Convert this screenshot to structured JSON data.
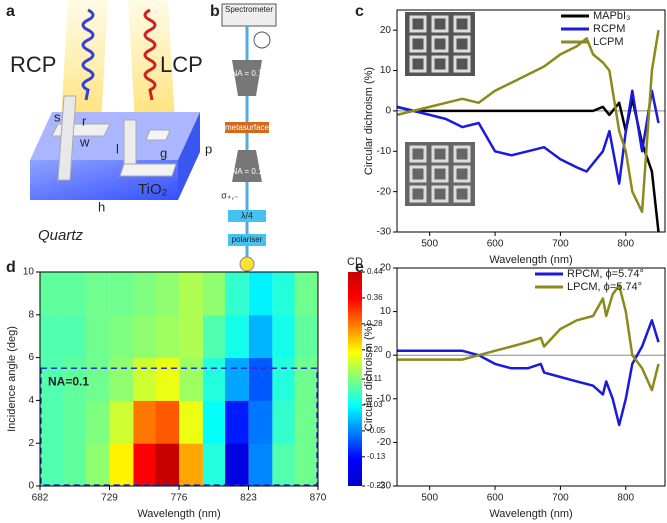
{
  "figure": {
    "panel_labels": [
      "a",
      "b",
      "c",
      "d",
      "e"
    ],
    "panel_a": {
      "beam_left": "RCP",
      "beam_right": "LCP",
      "dims": [
        "s",
        "r",
        "w",
        "l",
        "g",
        "p",
        "h"
      ],
      "material": "TiO₂",
      "substrate": "Quartz"
    },
    "panel_b": {
      "detector": "Spectrometer",
      "objective_top": "NA = 0.7",
      "sample": "metasurface",
      "objective_bottom": "NA = 0.1",
      "polarization": "σ₊,₋",
      "waveplate": "λ/4",
      "polarizer": "polariser"
    }
  },
  "chart_data": [
    {
      "type": "line",
      "xlabel": "Wavelength (nm)",
      "ylabel": "Circular dichroism (%)",
      "legend": "upper right",
      "xlim": [
        450,
        860
      ],
      "ylim": [
        -30,
        25
      ],
      "xticks": [
        500,
        600,
        700,
        800
      ],
      "yticks": [
        -30,
        -20,
        -10,
        0,
        10,
        20
      ],
      "x": [
        450,
        475,
        500,
        525,
        550,
        575,
        600,
        625,
        650,
        675,
        700,
        725,
        740,
        750,
        765,
        775,
        790,
        800,
        810,
        825,
        840,
        850
      ],
      "series": [
        {
          "name": "MAPbI₃",
          "color": "#000000",
          "values": [
            1,
            0,
            0,
            0,
            0,
            0,
            0,
            0,
            0,
            0,
            0,
            0,
            0,
            0,
            1,
            -1,
            2,
            -5,
            3,
            -8,
            -15,
            -30
          ]
        },
        {
          "name": "RCPM",
          "color": "#1a1adc",
          "values": [
            1,
            0,
            -1,
            -2,
            -4,
            -3,
            -10,
            -11,
            -10,
            -9,
            -12,
            -14,
            -15,
            -13,
            -10,
            -5,
            -18,
            -5,
            5,
            -10,
            5,
            -3
          ]
        },
        {
          "name": "LCPM",
          "color": "#8c8a1a",
          "values": [
            -1,
            0,
            1,
            2,
            3,
            2,
            5,
            7,
            9,
            11,
            14,
            16,
            18,
            14,
            12,
            10,
            -5,
            -10,
            -20,
            -25,
            10,
            20
          ]
        }
      ]
    },
    {
      "type": "heatmap",
      "xlabel": "Wavelength (nm)",
      "ylabel": "Incidence angle (deg)",
      "xlim": [
        682,
        870
      ],
      "ylim": [
        0,
        10
      ],
      "xticks": [
        682,
        729,
        776,
        823,
        870
      ],
      "yticks": [
        0,
        2,
        4,
        6,
        8,
        10
      ],
      "x": [
        690,
        706,
        721,
        737,
        753,
        768,
        784,
        800,
        815,
        831,
        847,
        862
      ],
      "y": [
        1,
        3,
        5,
        7,
        9
      ],
      "z": [
        [
          0.08,
          0.09,
          0.12,
          0.2,
          0.36,
          0.44,
          0.25,
          0.05,
          -0.18,
          -0.05,
          0.08,
          0.1
        ],
        [
          0.08,
          0.09,
          0.11,
          0.16,
          0.28,
          0.3,
          0.18,
          0.03,
          -0.12,
          -0.06,
          0.06,
          0.1
        ],
        [
          0.08,
          0.09,
          0.1,
          0.12,
          0.16,
          0.18,
          0.13,
          0.05,
          -0.03,
          -0.08,
          0.05,
          0.1
        ],
        [
          0.08,
          0.08,
          0.1,
          0.11,
          0.12,
          0.13,
          0.14,
          0.08,
          0.04,
          -0.02,
          0.04,
          0.09
        ],
        [
          0.09,
          0.09,
          0.1,
          0.1,
          0.11,
          0.12,
          0.14,
          0.12,
          0.06,
          0.02,
          0.05,
          0.1
        ]
      ],
      "colorbar": {
        "title": "CD",
        "zlim": [
          -0.22,
          0.44
        ],
        "ticks": [
          0.44,
          0.36,
          0.28,
          {
            "value": 0.2,
            "label": "0.20"
          },
          0.11,
          0.03,
          -0.05,
          -0.13,
          -0.22
        ],
        "colors": [
          "#0000c8",
          "#0000ff",
          "#007fff",
          "#00ffff",
          "#7fff7f",
          "#ffff00",
          "#ff7f00",
          "#ff0000",
          "#c80000"
        ]
      },
      "annotations": [
        {
          "text": "NA=0.1",
          "y": 5.5
        }
      ]
    },
    {
      "type": "line",
      "xlabel": "Wavelength (nm)",
      "ylabel": "Circular dichroism (%)",
      "legend": "upper right",
      "xlim": [
        450,
        860
      ],
      "ylim": [
        -30,
        20
      ],
      "xticks": [
        500,
        600,
        700,
        800
      ],
      "yticks": [
        -30,
        -20,
        -10,
        0,
        10,
        20
      ],
      "x": [
        450,
        500,
        550,
        575,
        600,
        625,
        650,
        670,
        675,
        700,
        725,
        750,
        765,
        770,
        780,
        790,
        800,
        810,
        825,
        840,
        850
      ],
      "series": [
        {
          "name": "RPCM, ϕ=5.74°",
          "color": "#1a1adc",
          "values": [
            1,
            1,
            1,
            0,
            -2,
            -3,
            -3,
            -2,
            -4,
            -5,
            -6,
            -7,
            -9,
            -6,
            -10,
            -16,
            -10,
            -2,
            2,
            8,
            3
          ]
        },
        {
          "name": "LPCM, ϕ=5.74°",
          "color": "#8c8a1a",
          "values": [
            -1,
            -1,
            -1,
            0,
            1,
            2,
            3,
            4,
            2,
            6,
            8,
            9,
            13,
            9,
            14,
            16,
            10,
            0,
            -3,
            -8,
            -2
          ]
        }
      ]
    }
  ]
}
